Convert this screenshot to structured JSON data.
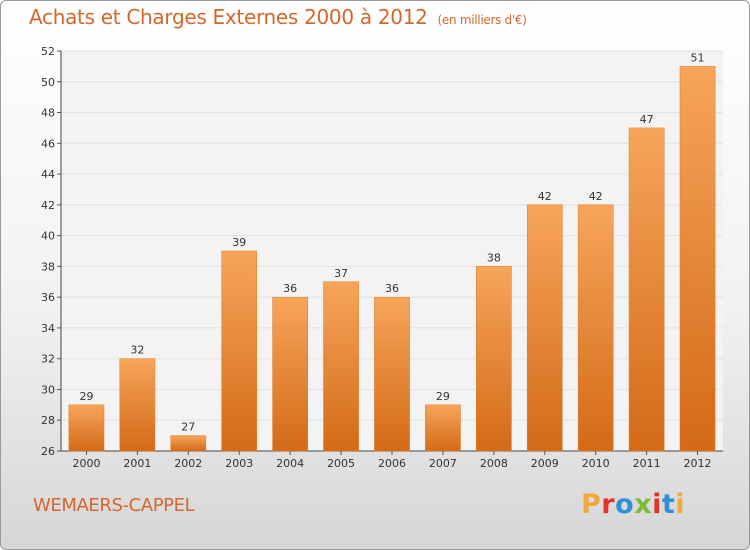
{
  "chart_data": {
    "type": "bar",
    "title": "Achats et Charges Externes 2000 à 2012",
    "subtitle": "(en milliers d'€)",
    "categories": [
      "2000",
      "2001",
      "2002",
      "2003",
      "2004",
      "2005",
      "2006",
      "2007",
      "2008",
      "2009",
      "2010",
      "2011",
      "2012"
    ],
    "values": [
      29,
      32,
      27,
      39,
      36,
      37,
      36,
      29,
      38,
      42,
      42,
      47,
      51
    ],
    "ylim": [
      26,
      52
    ],
    "yticks": [
      26,
      28,
      30,
      32,
      34,
      36,
      38,
      40,
      42,
      44,
      46,
      48,
      50,
      52
    ],
    "grid": true,
    "bar_color": "#f08a2e",
    "bar_color_light": "#f7a55a",
    "bar_color_dark": "#d36a18"
  },
  "footer": {
    "commune": "WEMAERS-CAPPEL",
    "logo_text": "Proxiti",
    "logo_colors": [
      "#f2a93b",
      "#e0332b",
      "#2f8fd8",
      "#7dbb3c",
      "#e0332b",
      "#2f8fd8",
      "#f2a93b"
    ]
  },
  "colors": {
    "accent": "#d4672c"
  }
}
